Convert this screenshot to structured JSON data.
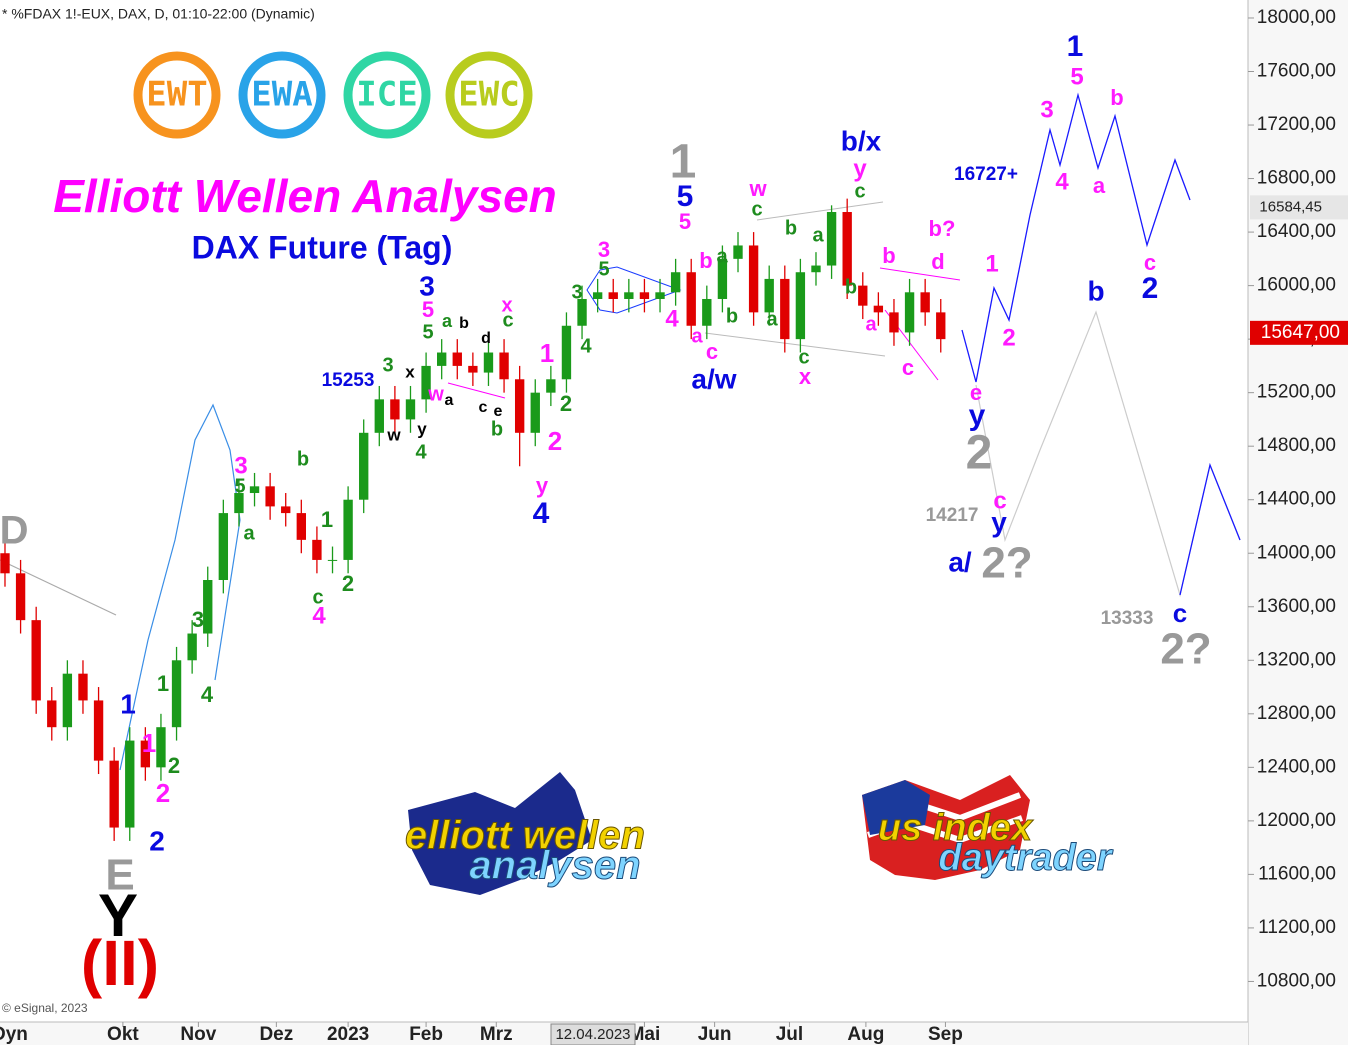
{
  "header": "* %FDAX 1!-EUX, DAX, D, 01:10-22:00 (Dynamic)",
  "badges": [
    "EWT",
    "EWA",
    "ICE",
    "EWC"
  ],
  "logos": [
    "elliott wellen",
    "analysen",
    "us index",
    "daytrader"
  ],
  "footer": "© eSignal, 2023",
  "chart_data": {
    "type": "candlestick",
    "title": "Elliott Wellen Analysen",
    "subtitle": "DAX Future (Tag)",
    "colors": {
      "up": "#1a9a1a",
      "down": "#e00000"
    },
    "open": [
      14000,
      13850,
      13500,
      12900,
      12700,
      13100,
      12900,
      12450,
      11950,
      12600,
      12400,
      12700,
      13200,
      13400,
      13800,
      14300,
      14450,
      14500,
      14350,
      14300,
      14100,
      13950,
      13950,
      14400,
      14900,
      15150,
      15000,
      15150,
      15400,
      15500,
      15400,
      15350,
      15500,
      15300,
      14900,
      15200,
      15300,
      15700,
      15900,
      15950,
      15900,
      15950,
      15900,
      15950,
      16100,
      15700,
      15900,
      16200,
      16300,
      15800,
      16050,
      15600,
      16100,
      16150,
      16550,
      16000,
      15850,
      15800,
      15650,
      15950,
      15800
    ],
    "high": [
      14100,
      13950,
      13600,
      13000,
      13200,
      13200,
      13000,
      12550,
      12700,
      12700,
      12800,
      13300,
      13500,
      13900,
      14400,
      14550,
      14600,
      14600,
      14450,
      14400,
      14200,
      14050,
      14500,
      15000,
      15250,
      15250,
      15250,
      15500,
      15600,
      15600,
      15500,
      15600,
      15600,
      15400,
      15300,
      15400,
      15800,
      16000,
      16050,
      16050,
      16050,
      16050,
      16050,
      16200,
      16200,
      16000,
      16300,
      16400,
      16400,
      16150,
      16150,
      16200,
      16250,
      16600,
      16650,
      16100,
      15950,
      15900,
      16050,
      16050,
      15900
    ],
    "low": [
      13750,
      13400,
      12800,
      12600,
      12600,
      12800,
      12350,
      11850,
      11850,
      12300,
      12300,
      12600,
      13100,
      13300,
      13700,
      14200,
      14350,
      14250,
      14200,
      14000,
      13850,
      13850,
      13850,
      14300,
      14800,
      14900,
      14900,
      15050,
      15300,
      15300,
      15250,
      15250,
      15200,
      14650,
      14800,
      15100,
      15200,
      15600,
      15800,
      15800,
      15800,
      15800,
      15800,
      15850,
      15600,
      15600,
      15800,
      16100,
      15700,
      15700,
      15500,
      15500,
      16000,
      16050,
      15900,
      15750,
      15700,
      15550,
      15550,
      15700,
      15500
    ],
    "close": [
      13850,
      13500,
      12900,
      12700,
      13100,
      12900,
      12450,
      11950,
      12600,
      12400,
      12700,
      13200,
      13400,
      13800,
      14300,
      14450,
      14500,
      14350,
      14300,
      14100,
      13950,
      13950,
      14400,
      14900,
      15150,
      15000,
      15150,
      15400,
      15500,
      15400,
      15350,
      15500,
      15300,
      14900,
      15200,
      15300,
      15700,
      15900,
      15950,
      15900,
      15950,
      15900,
      15950,
      16100,
      15700,
      15900,
      16200,
      16300,
      15800,
      16050,
      15600,
      16100,
      16150,
      16550,
      16000,
      15850,
      15800,
      15650,
      15950,
      15800,
      15600
    ],
    "xlim": [
      -0.32,
      79.7
    ],
    "xticks": [
      {
        "value": 7.56,
        "label": "Okt"
      },
      {
        "value": 12.4,
        "label": "Nov"
      },
      {
        "value": 17.4,
        "label": "Dez"
      },
      {
        "value": 22,
        "label": "2023"
      },
      {
        "value": 27,
        "label": "Feb"
      },
      {
        "value": 31.5,
        "label": "Mrz"
      },
      {
        "value": 41,
        "label": "Mai"
      },
      {
        "value": 45.5,
        "label": "Jun"
      },
      {
        "value": 50.3,
        "label": "Jul"
      },
      {
        "value": 55.2,
        "label": "Aug"
      },
      {
        "value": 60.3,
        "label": "Sep"
      }
    ],
    "cursor_label": "12.04.2023",
    "axis_start_label": "Dyn",
    "ylim": [
      10470,
      18100
    ],
    "yticks": [
      {
        "value": 18000,
        "label": "18000,00"
      },
      {
        "value": 17600,
        "label": "17600,00"
      },
      {
        "value": 17200,
        "label": "17200,00"
      },
      {
        "value": 16800,
        "label": "16800,00"
      },
      {
        "value": 16400,
        "label": "16400,00"
      },
      {
        "value": 16000,
        "label": "16000,00"
      },
      {
        "value": 15600,
        "label": "15600,00"
      },
      {
        "value": 15200,
        "label": "15200,00"
      },
      {
        "value": 14800,
        "label": "14800,00"
      },
      {
        "value": 14400,
        "label": "14400,00"
      },
      {
        "value": 14000,
        "label": "14000,00"
      },
      {
        "value": 13600,
        "label": "13600,00"
      },
      {
        "value": 13200,
        "label": "13200,00"
      },
      {
        "value": 12800,
        "label": "12800,00"
      },
      {
        "value": 12400,
        "label": "12400,00"
      },
      {
        "value": 12000,
        "label": "12000,00"
      },
      {
        "value": 11600,
        "label": "11600,00"
      },
      {
        "value": 11200,
        "label": "11200,00"
      },
      {
        "value": 10800,
        "label": "10800,00"
      }
    ],
    "price_labels": [
      {
        "value": 16584.45,
        "label": "16584,45"
      },
      {
        "value": 15647,
        "label": "15647,00"
      }
    ],
    "annotations": [
      "D",
      "E",
      "Y",
      "(II)",
      "1",
      "2",
      "1",
      "2",
      "2",
      "1",
      "3",
      "4",
      "3",
      "5",
      "a",
      "b",
      "1",
      "c",
      "4",
      "2",
      "3",
      "15253",
      "x",
      "w",
      "y",
      "4",
      "3",
      "5",
      "5",
      "a",
      "b",
      "d",
      "w",
      "a",
      "c",
      "e",
      "b",
      "x",
      "c",
      "1",
      "2",
      "2",
      "y",
      "4",
      "3",
      "4",
      "3",
      "5",
      "1",
      "5",
      "5",
      "4",
      "b",
      "a",
      "b",
      "a",
      "c",
      "a/w",
      "w",
      "c",
      "b",
      "a",
      "a",
      "c",
      "x",
      "b/x",
      "y",
      "c",
      "b",
      "b",
      "b?",
      "d",
      "a",
      "c",
      "1",
      "2",
      "e",
      "y",
      "2",
      "16727+",
      "1",
      "5",
      "3",
      "b",
      "4",
      "a",
      "c",
      "2",
      "b",
      "14217",
      "c",
      "y",
      "a/",
      "2?",
      "13333",
      "c",
      "2?"
    ]
  }
}
